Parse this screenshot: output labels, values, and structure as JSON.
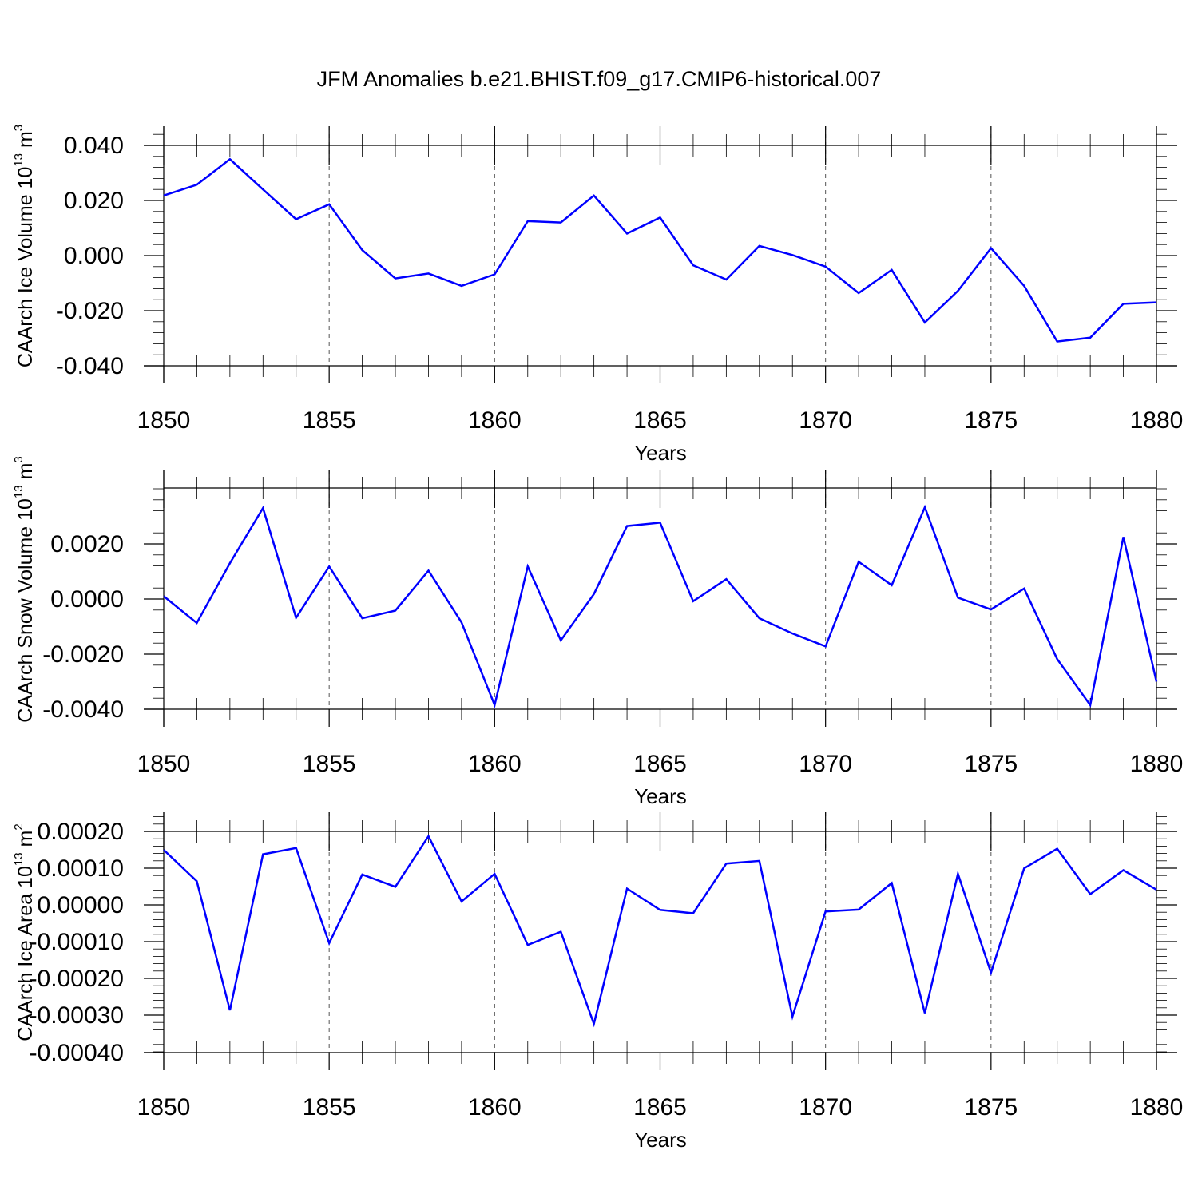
{
  "figure": {
    "title": "JFM Anomalies b.e21.BHIST.f09_g17.CMIP6-historical.007",
    "line_color": "#0000ff",
    "grid": "dashed vertical lines at major x ticks"
  },
  "chart_data": [
    {
      "type": "line",
      "ylabel": "CAArch Ice Volume 10",
      "ylabel_superscript": "13",
      "ylabel_unit": " m",
      "ylabel_unit_superscript": "3",
      "xlabel": "Years",
      "xlim": [
        1850,
        1880
      ],
      "ylim": [
        -0.04,
        0.048
      ],
      "xticks": [
        "1850",
        "1855",
        "1860",
        "1865",
        "1870",
        "1875",
        "1880"
      ],
      "yticks": [
        {
          "value": 0.04,
          "label": "0.040"
        },
        {
          "value": 0.02,
          "label": "0.020"
        },
        {
          "value": 0.0,
          "label": "0.000"
        },
        {
          "value": -0.02,
          "label": "-0.020"
        },
        {
          "value": -0.04,
          "label": "-0.040"
        }
      ],
      "x": [
        1850,
        1851,
        1852,
        1853,
        1854,
        1855,
        1856,
        1857,
        1858,
        1859,
        1860,
        1861,
        1862,
        1863,
        1864,
        1865,
        1866,
        1867,
        1868,
        1869,
        1870,
        1871,
        1872,
        1873,
        1874,
        1875,
        1876,
        1877,
        1878,
        1879,
        1880
      ],
      "series": [
        {
          "values": [
            0.0218,
            0.0257,
            0.035,
            0.024,
            0.0132,
            0.0186,
            0.002,
            -0.0083,
            -0.0065,
            -0.011,
            -0.0068,
            0.0125,
            0.012,
            0.0218,
            0.008,
            0.0138,
            -0.0035,
            -0.0087,
            0.0035,
            0.0002,
            -0.004,
            -0.0136,
            -0.0052,
            -0.0243,
            -0.0128,
            0.0027,
            -0.011,
            -0.0312,
            -0.0298,
            -0.0175,
            -0.017
          ]
        }
      ]
    },
    {
      "type": "line",
      "ylabel": "CAArch Snow Volume 10",
      "ylabel_superscript": "13",
      "ylabel_unit": " m",
      "ylabel_unit_superscript": "3",
      "xlabel": "Years",
      "xlim": [
        1850,
        1880
      ],
      "ylim": [
        -0.004,
        0.004
      ],
      "xticks": [
        "1850",
        "1855",
        "1860",
        "1865",
        "1870",
        "1875",
        "1880"
      ],
      "yticks": [
        {
          "value": 0.002,
          "label": "0.0020"
        },
        {
          "value": 0.0,
          "label": "0.0000"
        },
        {
          "value": -0.002,
          "label": "-0.0020"
        },
        {
          "value": -0.004,
          "label": "-0.0040"
        }
      ],
      "x": [
        1850,
        1851,
        1852,
        1853,
        1854,
        1855,
        1856,
        1857,
        1858,
        1859,
        1860,
        1861,
        1862,
        1863,
        1864,
        1865,
        1866,
        1867,
        1868,
        1869,
        1870,
        1871,
        1872,
        1873,
        1874,
        1875,
        1876,
        1877,
        1878,
        1879,
        1880
      ],
      "series": [
        {
          "values": [
            0.0001,
            -0.00087,
            0.0013,
            0.0033,
            -0.00068,
            0.00118,
            -0.0007,
            -0.00042,
            0.00103,
            -0.00085,
            -0.00385,
            0.00118,
            -0.0015,
            0.00018,
            0.00265,
            0.00277,
            -8e-05,
            0.00072,
            -0.0007,
            -0.00125,
            -0.00172,
            0.00135,
            0.0005,
            0.00333,
            5e-05,
            -0.00038,
            0.00038,
            -0.00218,
            -0.00385,
            0.00225,
            -0.003
          ]
        }
      ]
    },
    {
      "type": "line",
      "ylabel": "CAArch Ice Area 10",
      "ylabel_superscript": "13",
      "ylabel_unit": " m",
      "ylabel_unit_superscript": "2",
      "xlabel": "Years",
      "xlim": [
        1850,
        1880
      ],
      "ylim": [
        -0.0004,
        0.0002
      ],
      "xticks": [
        "1850",
        "1855",
        "1860",
        "1865",
        "1870",
        "1875",
        "1880"
      ],
      "yticks": [
        {
          "value": 0.0002,
          "label": "0.00020"
        },
        {
          "value": 0.0001,
          "label": "0.00010"
        },
        {
          "value": 0.0,
          "label": "0.00000"
        },
        {
          "value": -0.0001,
          "label": "-0.00010"
        },
        {
          "value": -0.0002,
          "label": "-0.00020"
        },
        {
          "value": -0.0003,
          "label": "-0.00030"
        },
        {
          "value": -0.0004,
          "label": "-0.00040"
        }
      ],
      "x": [
        1850,
        1851,
        1852,
        1853,
        1854,
        1855,
        1856,
        1857,
        1858,
        1859,
        1860,
        1861,
        1862,
        1863,
        1864,
        1865,
        1866,
        1867,
        1868,
        1869,
        1870,
        1871,
        1872,
        1873,
        1874,
        1875,
        1876,
        1877,
        1878,
        1879,
        1880
      ],
      "series": [
        {
          "values": [
            0.00015,
            6.5e-05,
            -0.000285,
            0.000138,
            0.000155,
            -0.000103,
            8.3e-05,
            5e-05,
            0.000187,
            1e-05,
            8.5e-05,
            -0.000108,
            -7.2e-05,
            -0.000322,
            4.5e-05,
            -1.3e-05,
            -2.2e-05,
            0.000113,
            0.00012,
            -0.000302,
            -1.7e-05,
            -1.2e-05,
            6e-05,
            -0.000293,
            8.5e-05,
            -0.000183,
            0.0001,
            0.000153,
            3e-05,
            9.5e-05,
            4.2e-05
          ]
        }
      ]
    }
  ]
}
